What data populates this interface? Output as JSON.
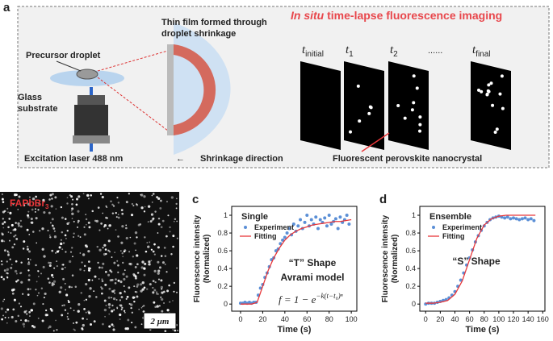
{
  "panel_a": {
    "label": "a",
    "title": {
      "italic": "In situ",
      "rest": " time-lapse fluorescence imaging"
    },
    "droplet_label": "Precursor droplet",
    "substrate_label": [
      "Glass",
      "substrate"
    ],
    "film_label": [
      "Thin film formed through",
      "droplet shrinkage"
    ],
    "laser_label": "Excitation laser 488 nm",
    "shrink_arrow": "←",
    "shrink_label": "Shrinkage direction",
    "nanocrystal_label": "Fluorescent perovskite nanocrystal",
    "frames": [
      {
        "symbol": "t",
        "sub": "initial"
      },
      {
        "symbol": "t",
        "sub": "1"
      },
      {
        "symbol": "t",
        "sub": "2"
      },
      {
        "symbol": "t",
        "sub": "final"
      }
    ],
    "ellipsis": "......"
  },
  "panel_b": {
    "label": "b",
    "material": {
      "text": "FAPbBr",
      "sub": "3"
    },
    "scale_bar": "2 μm"
  },
  "chart_data": [
    {
      "type": "scatter-line",
      "label": "c",
      "ylabel": [
        "Fluorescence intensity",
        "(Normalized)"
      ],
      "xlabel": "Time (s)",
      "xlim": [
        -8,
        105
      ],
      "ylim": [
        -0.08,
        1.1
      ],
      "xticks": [
        0,
        20,
        40,
        60,
        80,
        100
      ],
      "yticks": [
        0,
        0.2,
        0.4,
        0.6,
        0.8,
        1
      ],
      "legend_title": "Single",
      "annotations": [
        "“T” Shape",
        "Avrami model"
      ],
      "formula": {
        "main": "f = 1 − e",
        "exponent": "−k(t−t₀)ⁿ"
      },
      "series": [
        {
          "name": "Experiment",
          "color": "#5b8fd6",
          "x": [
            0,
            2,
            4,
            6,
            8,
            10,
            12,
            14,
            16,
            18,
            20,
            22,
            24,
            26,
            28,
            30,
            32,
            34,
            36,
            38,
            40,
            42,
            44,
            46,
            48,
            50,
            52,
            54,
            56,
            58,
            60,
            62,
            64,
            66,
            68,
            70,
            72,
            74,
            76,
            78,
            80,
            82,
            84,
            86,
            88,
            90,
            92,
            94,
            96,
            98
          ],
          "values": [
            0.01,
            0.01,
            0.02,
            0.01,
            0.02,
            0.01,
            0.02,
            0.02,
            0.1,
            0.18,
            0.22,
            0.3,
            0.35,
            0.42,
            0.5,
            0.52,
            0.6,
            0.62,
            0.68,
            0.72,
            0.75,
            0.8,
            0.85,
            0.78,
            0.9,
            0.82,
            0.88,
            0.95,
            0.85,
            0.92,
            1.0,
            0.88,
            0.95,
            0.9,
            0.98,
            0.85,
            0.95,
            0.92,
            0.97,
            0.88,
            1.0,
            0.9,
            0.93,
            0.96,
            0.85,
            0.98,
            0.92,
            0.95,
            1.0,
            0.9
          ]
        },
        {
          "name": "Fitting",
          "color": "#e8373a",
          "x": [
            0,
            5,
            10,
            15,
            20,
            25,
            30,
            35,
            40,
            45,
            50,
            55,
            60,
            65,
            70,
            75,
            80,
            85,
            90,
            95,
            100
          ],
          "values": [
            0,
            0,
            0,
            0.02,
            0.2,
            0.38,
            0.52,
            0.63,
            0.72,
            0.78,
            0.82,
            0.85,
            0.87,
            0.89,
            0.9,
            0.91,
            0.92,
            0.93,
            0.93,
            0.94,
            0.95
          ]
        }
      ]
    },
    {
      "type": "scatter-line",
      "label": "d",
      "ylabel": [
        "Fluorescence intensity",
        "(Normalized)"
      ],
      "xlabel": "Time (s)",
      "xlim": [
        -8,
        163
      ],
      "ylim": [
        -0.08,
        1.1
      ],
      "xticks": [
        0,
        20,
        40,
        60,
        80,
        100,
        120,
        140,
        160
      ],
      "yticks": [
        0,
        0.2,
        0.4,
        0.6,
        0.8,
        1
      ],
      "legend_title": "Ensemble",
      "annotations": [
        "“S” Shape"
      ],
      "series": [
        {
          "name": "Experiment",
          "color": "#5b8fd6",
          "x": [
            0,
            4,
            8,
            12,
            16,
            20,
            24,
            28,
            32,
            36,
            40,
            44,
            48,
            52,
            56,
            60,
            64,
            68,
            72,
            76,
            80,
            84,
            88,
            92,
            96,
            100,
            104,
            108,
            112,
            116,
            120,
            124,
            128,
            132,
            136,
            140,
            144,
            148
          ],
          "values": [
            0.0,
            0.01,
            0.01,
            0.01,
            0.02,
            0.03,
            0.04,
            0.05,
            0.07,
            0.1,
            0.14,
            0.2,
            0.27,
            0.35,
            0.44,
            0.52,
            0.61,
            0.7,
            0.77,
            0.83,
            0.88,
            0.92,
            0.95,
            0.97,
            0.98,
            0.99,
            0.98,
            0.97,
            0.98,
            0.96,
            0.97,
            0.96,
            0.95,
            0.96,
            0.97,
            0.95,
            0.96,
            0.94
          ]
        },
        {
          "name": "Fitting",
          "color": "#e8373a",
          "x": [
            0,
            10,
            20,
            30,
            40,
            50,
            60,
            70,
            80,
            90,
            100,
            110,
            120,
            130,
            140,
            150
          ],
          "values": [
            0.01,
            0.01,
            0.02,
            0.04,
            0.11,
            0.26,
            0.5,
            0.74,
            0.89,
            0.96,
            0.99,
            1.0,
            1.0,
            1.0,
            1.0,
            1.0
          ]
        }
      ]
    }
  ]
}
